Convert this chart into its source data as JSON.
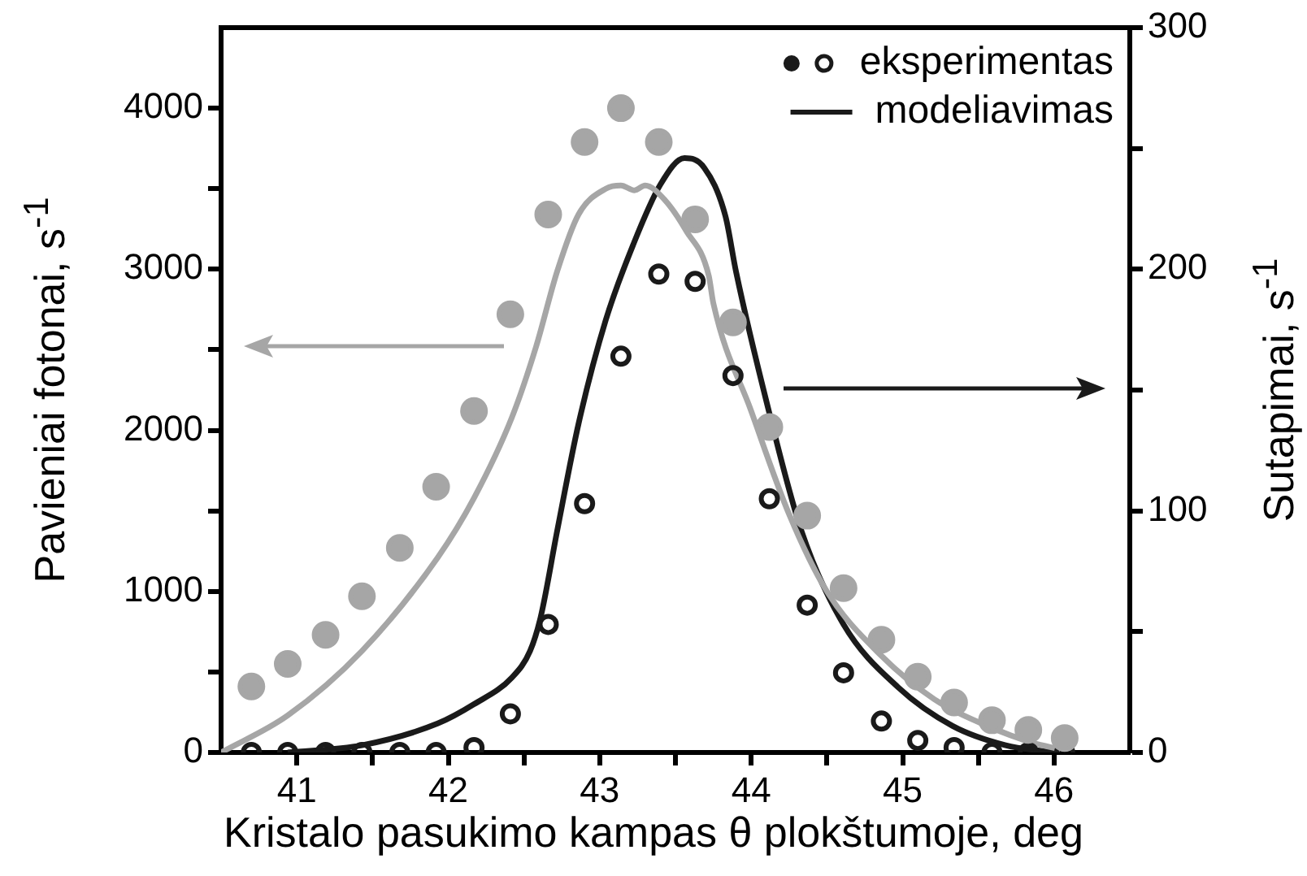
{
  "chart_data": {
    "type": "scatter",
    "xlabel": "Kristalo pasukimo kampas θ plokštumoje, deg",
    "ylabel": "Pavieniai fotonai, s$^{-1}$",
    "y2label": "Sutapimai, s$^{-1}$",
    "xlim": [
      40.5,
      46.5
    ],
    "xticks": [
      41,
      {
        "value": 41.5,
        "label": null
      },
      42,
      {
        "value": 42.5,
        "label": null
      },
      43,
      {
        "value": 43.5,
        "label": null
      },
      44,
      {
        "value": 44.5,
        "label": null
      },
      45,
      {
        "value": 45.5,
        "label": null
      },
      46
    ],
    "ylim": [
      0,
      4500
    ],
    "yticks": [
      0,
      {
        "value": 500,
        "label": null
      },
      1000,
      {
        "value": 1500,
        "label": null
      },
      2000,
      {
        "value": 2500,
        "label": null
      },
      3000,
      {
        "value": 3500,
        "label": null
      },
      4000
    ],
    "y2lim": [
      0,
      300
    ],
    "y2ticks": [
      0,
      {
        "value": 50,
        "label": null
      },
      100,
      {
        "value": 150,
        "label": null
      },
      200,
      {
        "value": 250,
        "label": null
      },
      300
    ],
    "grid": false,
    "legend": "top right",
    "series": [
      {
        "marker": "circle",
        "color": "#a6a6a6",
        "x": [
          40.7,
          40.94,
          41.19,
          41.43,
          41.68,
          41.92,
          42.17,
          42.41,
          42.66,
          42.9,
          43.14,
          43.39,
          43.63,
          43.88,
          44.12,
          44.37,
          44.61,
          44.86,
          45.1,
          45.34,
          45.59,
          45.83,
          46.07
        ],
        "values": [
          410,
          550,
          730,
          970,
          1270,
          1650,
          2120,
          2720,
          3340,
          3790,
          4000,
          3790,
          3310,
          2670,
          2020,
          1470,
          1020,
          700,
          470,
          310,
          200,
          140,
          90
        ]
      },
      {
        "marker": "circle",
        "name": "eksperimentas",
        "axis": "y2",
        "color": "#1a1a1a",
        "x": [
          40.7,
          40.94,
          41.19,
          41.43,
          41.68,
          41.92,
          42.17,
          42.41,
          42.66,
          42.9,
          43.14,
          43.39,
          43.63,
          43.88,
          44.12,
          44.37,
          44.61,
          44.86,
          45.1,
          45.34,
          45.59,
          45.83,
          46.07
        ],
        "values": [
          0,
          0,
          0,
          0,
          0,
          0,
          2,
          16,
          53,
          103,
          164,
          198,
          195,
          156,
          105,
          61,
          33,
          13,
          5,
          2,
          0,
          0,
          0
        ]
      },
      {
        "type": "line",
        "marker": "none",
        "color": "#a6a6a6",
        "x": [
          40.5,
          40.94,
          41.43,
          41.93,
          42.17,
          42.42,
          42.58,
          42.72,
          42.86,
          43.04,
          43.14,
          43.23,
          43.3,
          43.43,
          43.57,
          43.72,
          43.75,
          44.0,
          44.25,
          44.5,
          44.86,
          45.21,
          45.57,
          45.86,
          46.04
        ],
        "values": [
          0,
          230,
          630,
          1210,
          1580,
          2080,
          2520,
          2990,
          3340,
          3500,
          3520,
          3490,
          3520,
          3430,
          3240,
          2960,
          2790,
          2120,
          1480,
          1000,
          600,
          330,
          160,
          60,
          20
        ]
      },
      {
        "type": "line",
        "marker": "none",
        "name": "modeliavimas",
        "axis": "y2",
        "color": "#1a1a1a",
        "x": [
          40.94,
          41.43,
          41.93,
          42.17,
          42.42,
          42.54,
          42.61,
          42.72,
          42.86,
          43.04,
          43.22,
          43.4,
          43.56,
          43.69,
          43.83,
          43.9,
          44.11,
          44.33,
          44.61,
          44.97,
          45.33,
          45.68,
          46.0
        ],
        "values": [
          0,
          3,
          12,
          20,
          31,
          42,
          56,
          92,
          136,
          179,
          210,
          235,
          246,
          242,
          222,
          199,
          143,
          92,
          53,
          27,
          11,
          3,
          0
        ]
      }
    ]
  }
}
